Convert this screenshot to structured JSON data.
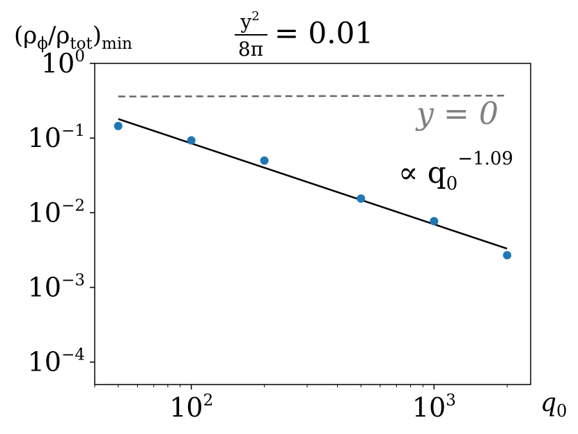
{
  "chart_data": {
    "type": "scatter",
    "title": "",
    "title_formula": {
      "num": "y",
      "num_exp": "2",
      "den": "8π",
      "rhs": "= 0.01"
    },
    "ylabel": {
      "main": "(ρ",
      "phi": "ϕ",
      "slash": "/ρ",
      "tot": "tot",
      "close": ")",
      "sub": "min"
    },
    "xlabel": {
      "main": "q",
      "sub": "0"
    },
    "x_scale": "log",
    "y_scale": "log",
    "xlim": [
      40,
      2500
    ],
    "ylim": [
      5e-05,
      1
    ],
    "x_ticks": [
      {
        "value": 100,
        "base": "10",
        "exp": "2"
      },
      {
        "value": 1000,
        "base": "10",
        "exp": "3"
      }
    ],
    "y_ticks": [
      {
        "value": 1,
        "base": "10",
        "exp": "0"
      },
      {
        "value": 0.1,
        "base": "10",
        "exp": "−1"
      },
      {
        "value": 0.01,
        "base": "10",
        "exp": "−2"
      },
      {
        "value": 0.001,
        "base": "10",
        "exp": "−3"
      },
      {
        "value": 0.0001,
        "base": "10",
        "exp": "−4"
      }
    ],
    "points": [
      {
        "x": 50,
        "y": 0.145
      },
      {
        "x": 100,
        "y": 0.093
      },
      {
        "x": 200,
        "y": 0.05
      },
      {
        "x": 500,
        "y": 0.0155
      },
      {
        "x": 1000,
        "y": 0.0077
      },
      {
        "x": 2000,
        "y": 0.0027
      }
    ],
    "fit_line": {
      "x": [
        50,
        2000
      ],
      "y": [
        0.18,
        0.0033
      ]
    },
    "fit_label": {
      "prefix": "∝ q",
      "sub": "0",
      "exp": "−1.09"
    },
    "reference_line": {
      "x": [
        50,
        2000
      ],
      "y": [
        0.36,
        0.37
      ],
      "label": "y = 0"
    },
    "colors": {
      "points": "#1f77b4",
      "fit": "#000000",
      "reference": "#666666",
      "reference_label": "#808080"
    },
    "grid": false,
    "legend": "none"
  }
}
